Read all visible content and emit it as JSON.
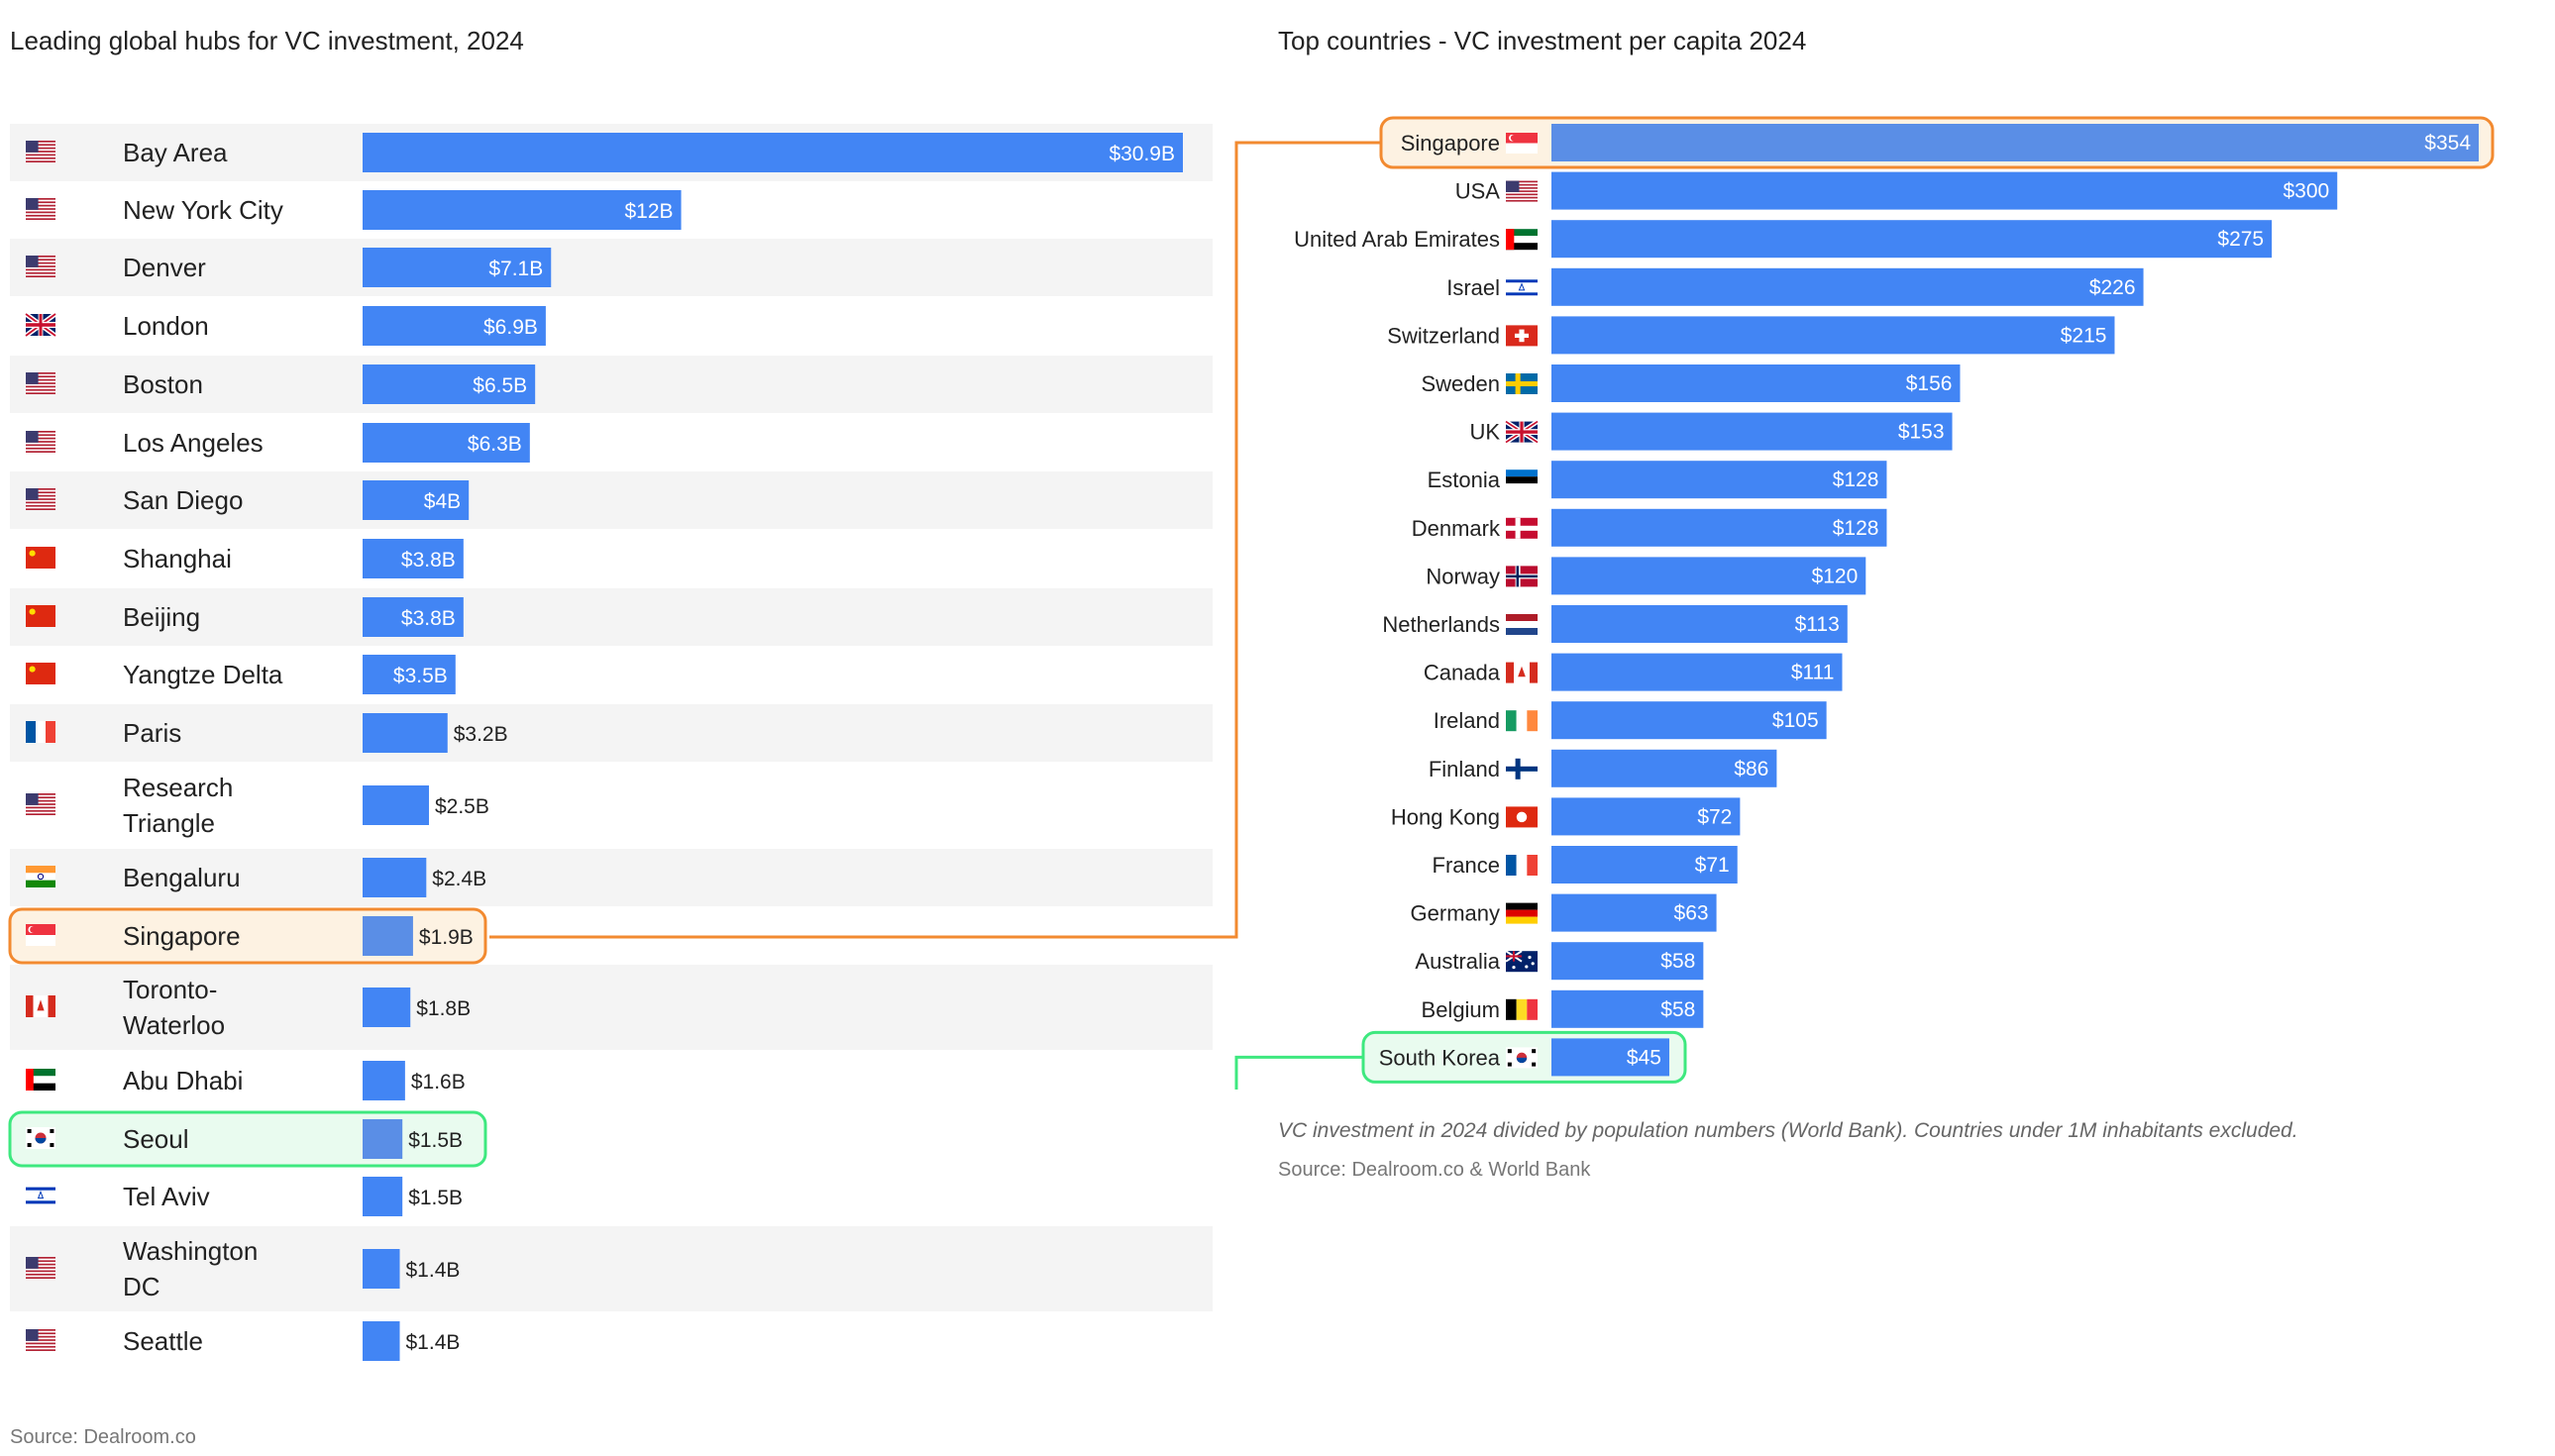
{
  "colors": {
    "bar": "#4285f4",
    "highlight_bar": "#5a8ee6",
    "orange": "#f28a30",
    "green": "#3ee87f",
    "orange_fill": "#fdf2e2",
    "green_fill": "#e9fbef",
    "stripe": "#f4f4f4"
  },
  "chart_data": [
    {
      "type": "bar",
      "title": "Leading global hubs for VC investment, 2024",
      "source": "Source: Dealroom.co",
      "unit": "$B",
      "items": [
        {
          "label": "Bay Area",
          "flag": "us",
          "value": 30.9,
          "value_label": "$30.9B"
        },
        {
          "label": "New York City",
          "flag": "us",
          "value": 12,
          "value_label": "$12B"
        },
        {
          "label": "Denver",
          "flag": "us",
          "value": 7.1,
          "value_label": "$7.1B"
        },
        {
          "label": "London",
          "flag": "uk",
          "value": 6.9,
          "value_label": "$6.9B"
        },
        {
          "label": "Boston",
          "flag": "us",
          "value": 6.5,
          "value_label": "$6.5B"
        },
        {
          "label": "Los Angeles",
          "flag": "us",
          "value": 6.3,
          "value_label": "$6.3B"
        },
        {
          "label": "San Diego",
          "flag": "us",
          "value": 4,
          "value_label": "$4B"
        },
        {
          "label": "Shanghai",
          "flag": "cn",
          "value": 3.8,
          "value_label": "$3.8B"
        },
        {
          "label": "Beijing",
          "flag": "cn",
          "value": 3.8,
          "value_label": "$3.8B"
        },
        {
          "label": "Yangtze Delta",
          "flag": "cn",
          "value": 3.5,
          "value_label": "$3.5B"
        },
        {
          "label": "Paris",
          "flag": "fr",
          "value": 3.2,
          "value_label": "$3.2B"
        },
        {
          "label": "Research Triangle",
          "lines": [
            "Research",
            "Triangle"
          ],
          "flag": "us",
          "value": 2.5,
          "value_label": "$2.5B"
        },
        {
          "label": "Bengaluru",
          "flag": "in",
          "value": 2.4,
          "value_label": "$2.4B"
        },
        {
          "label": "Singapore",
          "flag": "sg",
          "value": 1.9,
          "value_label": "$1.9B",
          "highlight": "orange"
        },
        {
          "label": "Toronto-Waterloo",
          "lines": [
            "Toronto-",
            "Waterloo"
          ],
          "flag": "ca",
          "value": 1.8,
          "value_label": "$1.8B"
        },
        {
          "label": "Abu Dhabi",
          "flag": "ae",
          "value": 1.6,
          "value_label": "$1.6B"
        },
        {
          "label": "Seoul",
          "flag": "kr",
          "value": 1.5,
          "value_label": "$1.5B",
          "highlight": "green"
        },
        {
          "label": "Tel Aviv",
          "flag": "il",
          "value": 1.5,
          "value_label": "$1.5B"
        },
        {
          "label": "Washington DC",
          "lines": [
            "Washington",
            "DC"
          ],
          "flag": "us",
          "value": 1.4,
          "value_label": "$1.4B"
        },
        {
          "label": "Seattle",
          "flag": "us",
          "value": 1.4,
          "value_label": "$1.4B"
        }
      ]
    },
    {
      "type": "bar",
      "title": "Top countries - VC investment per capita 2024",
      "note": "VC investment in 2024 divided by population numbers (World Bank). Countries under 1M inhabitants excluded.",
      "source": "Source: Dealroom.co & World Bank",
      "unit": "$",
      "items": [
        {
          "label": "Singapore",
          "flag": "sg",
          "value": 354,
          "value_label": "$354",
          "highlight": "orange"
        },
        {
          "label": "USA",
          "flag": "us",
          "value": 300,
          "value_label": "$300"
        },
        {
          "label": "United Arab Emirates",
          "flag": "ae",
          "value": 275,
          "value_label": "$275"
        },
        {
          "label": "Israel",
          "flag": "il",
          "value": 226,
          "value_label": "$226"
        },
        {
          "label": "Switzerland",
          "flag": "ch",
          "value": 215,
          "value_label": "$215"
        },
        {
          "label": "Sweden",
          "flag": "se",
          "value": 156,
          "value_label": "$156"
        },
        {
          "label": "UK",
          "flag": "uk",
          "value": 153,
          "value_label": "$153"
        },
        {
          "label": "Estonia",
          "flag": "ee",
          "value": 128,
          "value_label": "$128"
        },
        {
          "label": "Denmark",
          "flag": "dk",
          "value": 128,
          "value_label": "$128"
        },
        {
          "label": "Norway",
          "flag": "no",
          "value": 120,
          "value_label": "$120"
        },
        {
          "label": "Netherlands",
          "flag": "nl",
          "value": 113,
          "value_label": "$113"
        },
        {
          "label": "Canada",
          "flag": "ca",
          "value": 111,
          "value_label": "$111"
        },
        {
          "label": "Ireland",
          "flag": "ie",
          "value": 105,
          "value_label": "$105"
        },
        {
          "label": "Finland",
          "flag": "fi",
          "value": 86,
          "value_label": "$86"
        },
        {
          "label": "Hong Kong",
          "flag": "hk",
          "value": 72,
          "value_label": "$72"
        },
        {
          "label": "France",
          "flag": "fr",
          "value": 71,
          "value_label": "$71"
        },
        {
          "label": "Germany",
          "flag": "de",
          "value": 63,
          "value_label": "$63"
        },
        {
          "label": "Australia",
          "flag": "au",
          "value": 58,
          "value_label": "$58"
        },
        {
          "label": "Belgium",
          "flag": "be",
          "value": 58,
          "value_label": "$58"
        },
        {
          "label": "South Korea",
          "flag": "kr",
          "value": 45,
          "value_label": "$45",
          "highlight": "green"
        }
      ]
    }
  ]
}
